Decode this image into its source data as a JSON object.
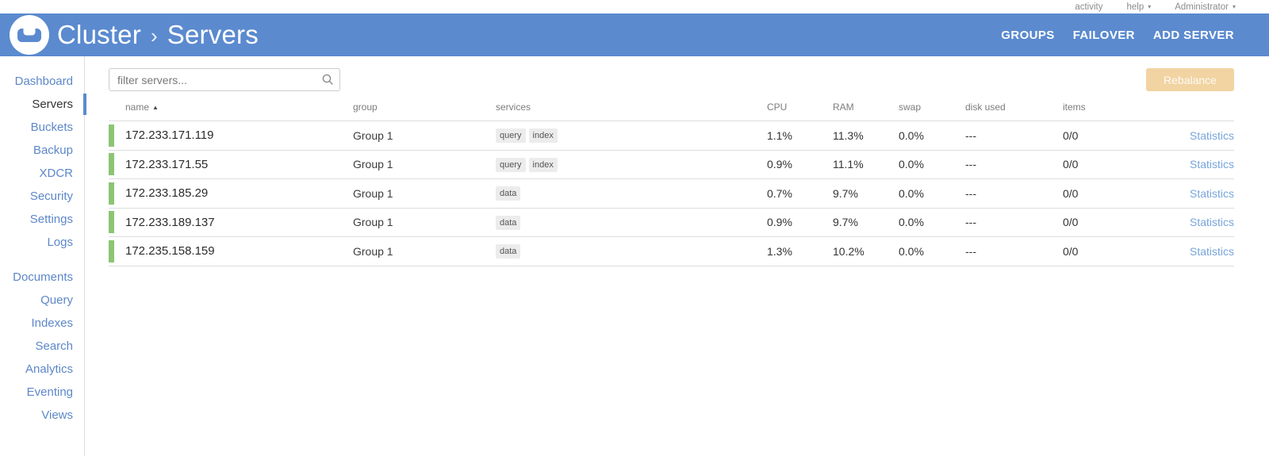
{
  "topbar": {
    "activity_label": "activity",
    "help_label": "help",
    "user_label": "Administrator",
    "caret_glyph": "▾"
  },
  "appbar": {
    "breadcrumb_root": "Cluster",
    "breadcrumb_separator": "›",
    "breadcrumb_current": "Servers",
    "actions": [
      {
        "label": "GROUPS"
      },
      {
        "label": "FAILOVER"
      },
      {
        "label": "ADD SERVER"
      }
    ]
  },
  "sidebar": {
    "primary_items": [
      {
        "label": "Dashboard",
        "active": false
      },
      {
        "label": "Servers",
        "active": true
      },
      {
        "label": "Buckets",
        "active": false
      },
      {
        "label": "Backup",
        "active": false
      },
      {
        "label": "XDCR",
        "active": false
      },
      {
        "label": "Security",
        "active": false
      },
      {
        "label": "Settings",
        "active": false
      },
      {
        "label": "Logs",
        "active": false
      }
    ],
    "secondary_items": [
      {
        "label": "Documents",
        "active": false
      },
      {
        "label": "Query",
        "active": false
      },
      {
        "label": "Indexes",
        "active": false
      },
      {
        "label": "Search",
        "active": false
      },
      {
        "label": "Analytics",
        "active": false
      },
      {
        "label": "Eventing",
        "active": false
      },
      {
        "label": "Views",
        "active": false
      }
    ]
  },
  "toolbar": {
    "filter_placeholder": "filter servers...",
    "rebalance_label": "Rebalance"
  },
  "servers_table": {
    "columns": {
      "name": "name",
      "group": "group",
      "services": "services",
      "cpu": "CPU",
      "ram": "RAM",
      "swap": "swap",
      "disk_used": "disk used",
      "items": "items"
    },
    "sort_icon": "▲",
    "rows": [
      {
        "name": "172.233.171.119",
        "group": "Group 1",
        "services": [
          "query",
          "index"
        ],
        "cpu": "1.1%",
        "ram": "11.3%",
        "swap": "0.0%",
        "disk_used": "---",
        "items": "0/0",
        "link": "Statistics"
      },
      {
        "name": "172.233.171.55",
        "group": "Group 1",
        "services": [
          "query",
          "index"
        ],
        "cpu": "0.9%",
        "ram": "11.1%",
        "swap": "0.0%",
        "disk_used": "---",
        "items": "0/0",
        "link": "Statistics"
      },
      {
        "name": "172.233.185.29",
        "group": "Group 1",
        "services": [
          "data"
        ],
        "cpu": "0.7%",
        "ram": "9.7%",
        "swap": "0.0%",
        "disk_used": "---",
        "items": "0/0",
        "link": "Statistics"
      },
      {
        "name": "172.233.189.137",
        "group": "Group 1",
        "services": [
          "data"
        ],
        "cpu": "0.9%",
        "ram": "9.7%",
        "swap": "0.0%",
        "disk_used": "---",
        "items": "0/0",
        "link": "Statistics"
      },
      {
        "name": "172.235.158.159",
        "group": "Group 1",
        "services": [
          "data"
        ],
        "cpu": "1.3%",
        "ram": "10.2%",
        "swap": "0.0%",
        "disk_used": "---",
        "items": "0/0",
        "link": "Statistics"
      }
    ]
  },
  "colors": {
    "header_blue": "#5b8acf",
    "sidebar_link_blue": "#5d87c9",
    "statistics_link_blue": "#78a5da",
    "healthy_green": "#8cc573",
    "rebalance_disabled_tan": "#f2d3a2",
    "badge_gray": "#ececec"
  }
}
